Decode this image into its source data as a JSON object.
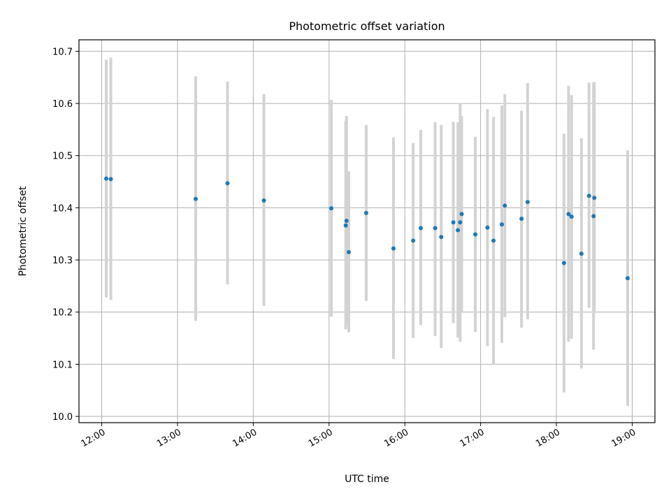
{
  "chart_data": {
    "type": "scatter",
    "title": "Photometric offset variation",
    "xlabel": "UTC time",
    "ylabel": "Photometric offset",
    "x_unit": "hours UTC",
    "xlim": [
      11.7,
      19.3
    ],
    "ylim": [
      9.988,
      10.722
    ],
    "xticks": [
      {
        "value": 12,
        "label": "12:00"
      },
      {
        "value": 13,
        "label": "13:00"
      },
      {
        "value": 14,
        "label": "14:00"
      },
      {
        "value": 15,
        "label": "15:00"
      },
      {
        "value": 16,
        "label": "16:00"
      },
      {
        "value": 17,
        "label": "17:00"
      },
      {
        "value": 18,
        "label": "18:00"
      },
      {
        "value": 19,
        "label": "19:00"
      }
    ],
    "yticks": [
      {
        "value": 10.0,
        "label": "10.0"
      },
      {
        "value": 10.1,
        "label": "10.1"
      },
      {
        "value": 10.2,
        "label": "10.2"
      },
      {
        "value": 10.3,
        "label": "10.3"
      },
      {
        "value": 10.4,
        "label": "10.4"
      },
      {
        "value": 10.5,
        "label": "10.5"
      },
      {
        "value": 10.6,
        "label": "10.6"
      },
      {
        "value": 10.7,
        "label": "10.7"
      }
    ],
    "grid": true,
    "point_color": "#1f77b4",
    "errorbar_color": "#d3d3d3",
    "points": [
      {
        "t": 12.06,
        "y": 10.456,
        "lo": 10.228,
        "hi": 10.684
      },
      {
        "t": 12.12,
        "y": 10.455,
        "lo": 10.223,
        "hi": 10.688
      },
      {
        "t": 13.24,
        "y": 10.417,
        "lo": 10.183,
        "hi": 10.652
      },
      {
        "t": 13.66,
        "y": 10.447,
        "lo": 10.253,
        "hi": 10.642
      },
      {
        "t": 14.14,
        "y": 10.414,
        "lo": 10.212,
        "hi": 10.618
      },
      {
        "t": 15.03,
        "y": 10.399,
        "lo": 10.191,
        "hi": 10.607
      },
      {
        "t": 15.22,
        "y": 10.366,
        "lo": 10.167,
        "hi": 10.566
      },
      {
        "t": 15.23,
        "y": 10.375,
        "lo": 10.175,
        "hi": 10.576
      },
      {
        "t": 15.26,
        "y": 10.315,
        "lo": 10.161,
        "hi": 10.47
      },
      {
        "t": 15.49,
        "y": 10.39,
        "lo": 10.221,
        "hi": 10.559
      },
      {
        "t": 15.85,
        "y": 10.322,
        "lo": 10.11,
        "hi": 10.535
      },
      {
        "t": 16.11,
        "y": 10.337,
        "lo": 10.15,
        "hi": 10.524
      },
      {
        "t": 16.21,
        "y": 10.361,
        "lo": 10.175,
        "hi": 10.549
      },
      {
        "t": 16.4,
        "y": 10.361,
        "lo": 10.154,
        "hi": 10.564
      },
      {
        "t": 16.48,
        "y": 10.344,
        "lo": 10.131,
        "hi": 10.559
      },
      {
        "t": 16.64,
        "y": 10.372,
        "lo": 10.179,
        "hi": 10.565
      },
      {
        "t": 16.7,
        "y": 10.357,
        "lo": 10.151,
        "hi": 10.564
      },
      {
        "t": 16.73,
        "y": 10.372,
        "lo": 10.143,
        "hi": 10.601
      },
      {
        "t": 16.75,
        "y": 10.388,
        "lo": 10.201,
        "hi": 10.576
      },
      {
        "t": 16.93,
        "y": 10.349,
        "lo": 10.162,
        "hi": 10.536
      },
      {
        "t": 17.09,
        "y": 10.362,
        "lo": 10.135,
        "hi": 10.589
      },
      {
        "t": 17.17,
        "y": 10.337,
        "lo": 10.1,
        "hi": 10.574
      },
      {
        "t": 17.28,
        "y": 10.368,
        "lo": 10.141,
        "hi": 10.596
      },
      {
        "t": 17.32,
        "y": 10.404,
        "lo": 10.19,
        "hi": 10.618
      },
      {
        "t": 17.54,
        "y": 10.379,
        "lo": 10.17,
        "hi": 10.586
      },
      {
        "t": 17.62,
        "y": 10.411,
        "lo": 10.186,
        "hi": 10.639
      },
      {
        "t": 18.1,
        "y": 10.294,
        "lo": 10.046,
        "hi": 10.542
      },
      {
        "t": 18.16,
        "y": 10.388,
        "lo": 10.143,
        "hi": 10.634
      },
      {
        "t": 18.2,
        "y": 10.383,
        "lo": 10.149,
        "hi": 10.616
      },
      {
        "t": 18.33,
        "y": 10.312,
        "lo": 10.092,
        "hi": 10.533
      },
      {
        "t": 18.43,
        "y": 10.423,
        "lo": 10.208,
        "hi": 10.64
      },
      {
        "t": 18.49,
        "y": 10.384,
        "lo": 10.128,
        "hi": 10.64
      },
      {
        "t": 18.5,
        "y": 10.419,
        "lo": 10.198,
        "hi": 10.641
      },
      {
        "t": 18.94,
        "y": 10.265,
        "lo": 10.02,
        "hi": 10.51
      }
    ]
  }
}
